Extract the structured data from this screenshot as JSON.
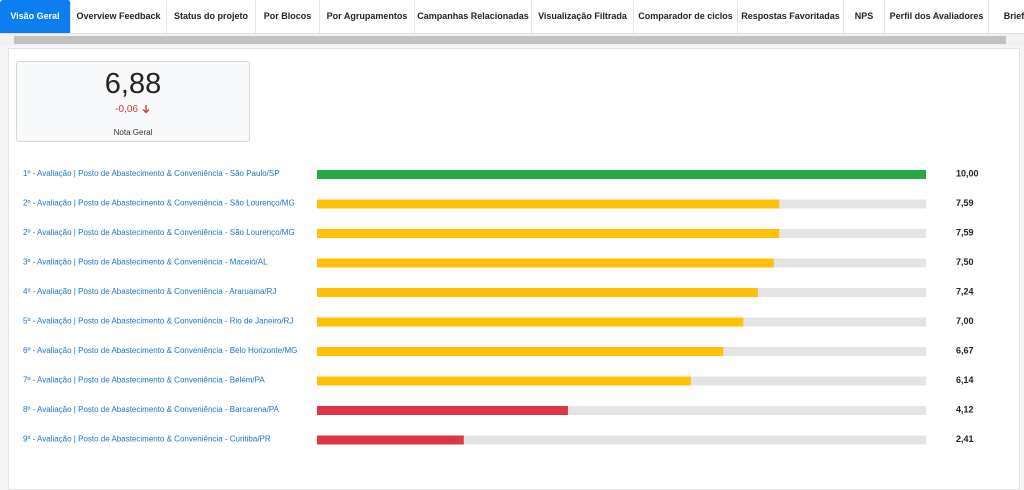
{
  "tabs": [
    "Visão Geral",
    "Overview Feedback",
    "Status do projeto",
    "Por Blocos",
    "Por Agrupamentos",
    "Campanhas Relacionadas",
    "Visualização Filtrada",
    "Comparador de ciclos",
    "Respostas Favoritadas",
    "NPS",
    "Perfil dos Avaliadores",
    "Brief"
  ],
  "kpi": {
    "value": "6,88",
    "delta": "-0,06",
    "label": "Nota Geral"
  },
  "ranking": {
    "xlim": [
      0,
      10
    ],
    "rows": [
      {
        "label": "1º - Avaliação | Posto de Abastecimento & Conveniência - São Paulo/SP",
        "value": 10.0,
        "value_label": "10,00",
        "color": "#28a745"
      },
      {
        "label": "2º - Avaliação | Posto de Abastecimento & Conveniência - São Lourenço/MG",
        "value": 7.59,
        "value_label": "7,59",
        "color": "#ffc107"
      },
      {
        "label": "2º - Avaliação | Posto de Abastecimento & Conveniência - São Lourenço/MG",
        "value": 7.59,
        "value_label": "7,59",
        "color": "#ffc107"
      },
      {
        "label": "3º - Avaliação | Posto de Abastecimento & Conveniência - Maceió/AL",
        "value": 7.5,
        "value_label": "7,50",
        "color": "#ffc107"
      },
      {
        "label": "4º - Avaliação | Posto de Abastecimento & Conveniência - Araruama/RJ",
        "value": 7.24,
        "value_label": "7,24",
        "color": "#ffc107"
      },
      {
        "label": "5º - Avaliação | Posto de Abastecimento & Conveniência - Rio de Janeiro/RJ",
        "value": 7.0,
        "value_label": "7,00",
        "color": "#ffc107"
      },
      {
        "label": "6º - Avaliação | Posto de Abastecimento & Conveniência - Belo Horizonte/MG",
        "value": 6.67,
        "value_label": "6,67",
        "color": "#ffc107"
      },
      {
        "label": "7º - Avaliação | Posto de Abastecimento & Conveniência - Belém/PA",
        "value": 6.14,
        "value_label": "6,14",
        "color": "#ffc107"
      },
      {
        "label": "8º - Avaliação | Posto de Abastecimento & Conveniência - Barcarena/PA",
        "value": 4.12,
        "value_label": "4,12",
        "color": "#dc3545"
      },
      {
        "label": "9º - Avaliação | Posto de Abastecimento & Conveniência - Curitiba/PR",
        "value": 2.41,
        "value_label": "2,41",
        "color": "#dc3545"
      }
    ]
  }
}
